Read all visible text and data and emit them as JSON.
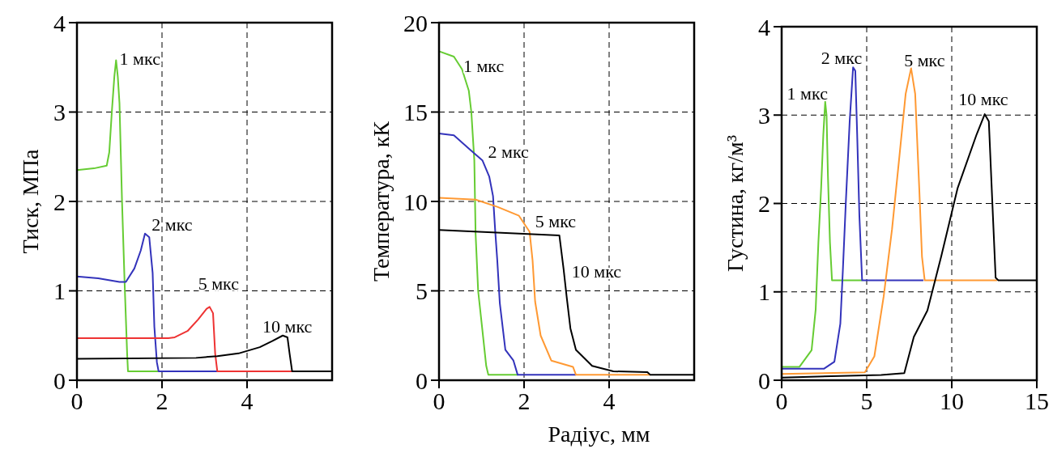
{
  "chart_data": [
    {
      "type": "line",
      "ylabel": "Тиск, МПа",
      "xlim": [
        0,
        6
      ],
      "xticks": [
        0,
        2,
        4
      ],
      "ylim": [
        0,
        4
      ],
      "yticks": [
        0,
        1,
        2,
        3,
        4
      ],
      "grid": true,
      "series": [
        {
          "name": "1 мкс",
          "color": "#66cc33",
          "x": [
            0,
            0.4,
            0.7,
            0.76,
            0.82,
            0.88,
            0.92,
            0.96,
            1.0,
            1.06,
            1.12,
            1.18,
            1.2,
            1.92
          ],
          "values": [
            2.35,
            2.37,
            2.4,
            2.55,
            3.0,
            3.4,
            3.58,
            3.4,
            3.1,
            2.0,
            1.1,
            0.3,
            0.1,
            0.1
          ]
        },
        {
          "name": "2 мкс",
          "color": "#3333bb",
          "x": [
            0,
            0.5,
            1.0,
            1.15,
            1.35,
            1.5,
            1.6,
            1.7,
            1.78,
            1.82,
            1.88,
            1.92,
            3.3
          ],
          "values": [
            1.16,
            1.14,
            1.1,
            1.1,
            1.25,
            1.45,
            1.64,
            1.6,
            1.2,
            0.6,
            0.2,
            0.1,
            0.1
          ]
        },
        {
          "name": "5 мкс",
          "color": "#ee3333",
          "x": [
            0,
            2.15,
            2.3,
            2.6,
            2.85,
            3.05,
            3.12,
            3.2,
            3.25,
            3.3,
            5.06
          ],
          "values": [
            0.47,
            0.47,
            0.48,
            0.55,
            0.68,
            0.8,
            0.82,
            0.75,
            0.3,
            0.1,
            0.1
          ]
        },
        {
          "name": "10 мкс",
          "color": "#000000",
          "x": [
            0,
            2.8,
            3.3,
            3.8,
            4.3,
            4.6,
            4.84,
            4.95,
            5.0,
            5.06,
            6.0
          ],
          "values": [
            0.24,
            0.25,
            0.27,
            0.3,
            0.37,
            0.44,
            0.5,
            0.48,
            0.3,
            0.1,
            0.1
          ]
        }
      ]
    },
    {
      "type": "line",
      "xlabel": "Радіус, мм",
      "ylabel": "Температура, кК",
      "xlim": [
        0,
        6
      ],
      "xticks": [
        0,
        2,
        4
      ],
      "ylim": [
        0,
        20
      ],
      "yticks": [
        0,
        5,
        10,
        15,
        20
      ],
      "grid": true,
      "series": [
        {
          "name": "1 мкс",
          "color": "#66cc33",
          "x": [
            0,
            0.35,
            0.54,
            0.7,
            0.76,
            0.83,
            0.86,
            0.92,
            1.02,
            1.11,
            1.16,
            1.85
          ],
          "values": [
            18.4,
            18.1,
            17.4,
            16.2,
            15,
            12.3,
            8.2,
            5,
            2.8,
            0.8,
            0.3,
            0.3
          ]
        },
        {
          "name": "2 мкс",
          "color": "#3333bb",
          "x": [
            0,
            0.35,
            0.73,
            1.02,
            1.18,
            1.27,
            1.32,
            1.37,
            1.43,
            1.56,
            1.75,
            1.85,
            3.22
          ],
          "values": [
            13.8,
            13.7,
            12.9,
            12.3,
            11.4,
            10.3,
            8.4,
            6.7,
            4.3,
            1.7,
            1.1,
            0.3,
            0.3
          ]
        },
        {
          "name": "5 мкс",
          "color": "#ff9933",
          "x": [
            0,
            0.86,
            1.37,
            1.88,
            2.13,
            2.2,
            2.26,
            2.39,
            2.64,
            3.15,
            3.22,
            4.97
          ],
          "values": [
            10.2,
            10.1,
            9.7,
            9.2,
            8.3,
            6.7,
            4.4,
            2.5,
            1.1,
            0.75,
            0.3,
            0.3
          ]
        },
        {
          "name": "10 мкс",
          "color": "#000000",
          "x": [
            0,
            2.83,
            2.93,
            3.0,
            3.09,
            3.22,
            3.6,
            4.1,
            4.9,
            4.97,
            6.0
          ],
          "values": [
            8.4,
            8.1,
            6.2,
            4.7,
            2.9,
            1.7,
            0.8,
            0.5,
            0.45,
            0.3,
            0.3
          ]
        }
      ]
    },
    {
      "type": "line",
      "ylabel": "Густина, кг/м³",
      "xlim": [
        0,
        15
      ],
      "xticks": [
        0,
        5,
        10,
        15
      ],
      "ylim": [
        0,
        4
      ],
      "yticks": [
        0,
        1,
        2,
        3,
        4
      ],
      "grid": true,
      "series": [
        {
          "name": "1 мкс",
          "color": "#66cc33",
          "x": [
            0,
            1.04,
            1.76,
            2.0,
            2.16,
            2.32,
            2.45,
            2.56,
            2.64,
            2.72,
            2.84,
            2.96,
            4.73
          ],
          "values": [
            0.15,
            0.15,
            0.34,
            0.8,
            1.56,
            2.17,
            2.78,
            3.15,
            3.0,
            2.32,
            1.56,
            1.13,
            1.13
          ]
        },
        {
          "name": "2 мкс",
          "color": "#3333bb",
          "x": [
            0,
            2.48,
            3.1,
            3.45,
            3.6,
            3.77,
            4.0,
            4.2,
            4.33,
            4.44,
            4.57,
            4.73,
            8.33
          ],
          "values": [
            0.13,
            0.13,
            0.21,
            0.64,
            1.25,
            2.0,
            2.93,
            3.54,
            3.5,
            2.78,
            1.86,
            1.13,
            1.13
          ]
        },
        {
          "name": "5 мкс",
          "color": "#ff9933",
          "x": [
            0,
            4.89,
            5.45,
            6.0,
            6.49,
            6.89,
            7.29,
            7.61,
            7.85,
            8.09,
            8.25,
            8.41,
            12.66
          ],
          "values": [
            0.07,
            0.09,
            0.27,
            0.95,
            1.71,
            2.47,
            3.24,
            3.53,
            3.24,
            2.17,
            1.4,
            1.13,
            1.13
          ]
        },
        {
          "name": "10 мкс",
          "color": "#000000",
          "x": [
            0,
            5.85,
            7.21,
            7.77,
            8.57,
            9.38,
            10.34,
            11.46,
            11.94,
            12.18,
            12.42,
            12.58,
            12.74,
            15
          ],
          "values": [
            0.03,
            0.06,
            0.08,
            0.49,
            0.79,
            1.4,
            2.17,
            2.78,
            3.01,
            2.93,
            1.86,
            1.16,
            1.13,
            1.13
          ]
        }
      ]
    }
  ]
}
